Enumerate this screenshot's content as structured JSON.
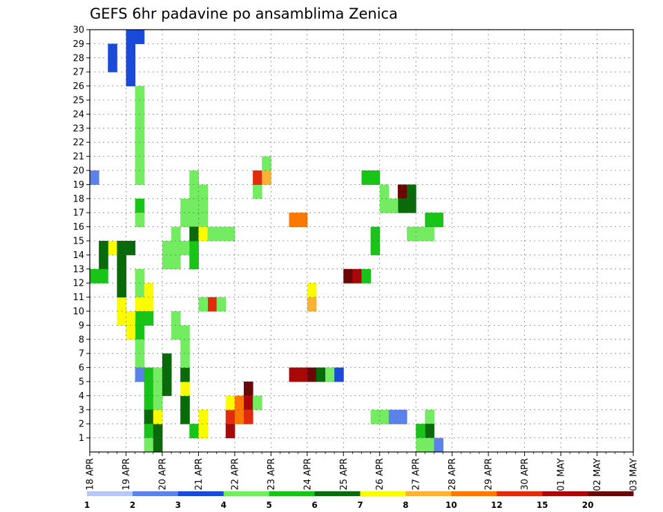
{
  "chart_data": {
    "type": "heatmap",
    "title": "GEFS 6hr padavine po ansamblima Zenica",
    "xlabel": "",
    "ylabel": "",
    "x_labels": [
      "18 APR",
      "19 APR",
      "20 APR",
      "21 APR",
      "22 APR",
      "23 APR",
      "24 APR",
      "25 APR",
      "26 APR",
      "27 APR",
      "28 APR",
      "29 APR",
      "30 APR",
      "01 MAY",
      "02 MAY",
      "03 MAY"
    ],
    "y_labels": [
      "1",
      "2",
      "3",
      "4",
      "5",
      "6",
      "7",
      "8",
      "9",
      "10",
      "11",
      "12",
      "13",
      "14",
      "15",
      "16",
      "17",
      "18",
      "19",
      "20",
      "21",
      "22",
      "23",
      "24",
      "25",
      "26",
      "27",
      "28",
      "29",
      "30"
    ],
    "y_range": [
      0,
      30
    ],
    "grid": "dotted",
    "colorbar": {
      "levels": [
        "1",
        "2",
        "3",
        "4",
        "5",
        "6",
        "7",
        "8",
        "10",
        "12",
        "15",
        "20"
      ],
      "colors": [
        "#b8c8f4",
        "#5a82e8",
        "#1a4ad8",
        "#74ec62",
        "#18c418",
        "#086a08",
        "#fcfc00",
        "#fcb234",
        "#fc7800",
        "#e02c0c",
        "#aa0808",
        "#6a0808"
      ]
    },
    "cells": [
      [
        5,
        29,
        3
      ],
      [
        5,
        25,
        3
      ],
      [
        5,
        24,
        3
      ],
      [
        5,
        23,
        3
      ],
      [
        5,
        22,
        3
      ],
      [
        5,
        21,
        3
      ],
      [
        5,
        20,
        3
      ],
      [
        5,
        19,
        3
      ],
      [
        5,
        17,
        4
      ],
      [
        5,
        16,
        3
      ],
      [
        5,
        12,
        3
      ],
      [
        5,
        11,
        3
      ],
      [
        5,
        10,
        6
      ],
      [
        5,
        9,
        4
      ],
      [
        5,
        8,
        4
      ],
      [
        5,
        7,
        3
      ],
      [
        5,
        6,
        3
      ],
      [
        5,
        5,
        1
      ],
      [
        5,
        29,
        2
      ],
      [
        4,
        29,
        2
      ],
      [
        4,
        28,
        2
      ],
      [
        4,
        27,
        2
      ],
      [
        4,
        26,
        2
      ],
      [
        0,
        19,
        1
      ],
      [
        2,
        28,
        2
      ],
      [
        2,
        27,
        2
      ],
      [
        2,
        14,
        6
      ],
      [
        1,
        14,
        5
      ],
      [
        1,
        13,
        5
      ],
      [
        1,
        12,
        4
      ],
      [
        0,
        12,
        4
      ],
      [
        4,
        8,
        6
      ],
      [
        4,
        9,
        6
      ],
      [
        3,
        9,
        6
      ],
      [
        3,
        10,
        6
      ],
      [
        3,
        11,
        5
      ],
      [
        3,
        12,
        5
      ],
      [
        3,
        13,
        5
      ],
      [
        3,
        14,
        5
      ],
      [
        4,
        14,
        5
      ],
      [
        6,
        10,
        6
      ],
      [
        6,
        11,
        6
      ],
      [
        6,
        9,
        4
      ],
      [
        6,
        5,
        4
      ],
      [
        6,
        4,
        4
      ],
      [
        6,
        3,
        4
      ],
      [
        6,
        2,
        5
      ],
      [
        6,
        1,
        4
      ],
      [
        6,
        0,
        3
      ],
      [
        7,
        0,
        5
      ],
      [
        7,
        1,
        5
      ],
      [
        7,
        2,
        6
      ],
      [
        7,
        3,
        3
      ],
      [
        7,
        4,
        3
      ],
      [
        7,
        5,
        3
      ],
      [
        8,
        4,
        5
      ],
      [
        8,
        6,
        5
      ],
      [
        8,
        5,
        5
      ],
      [
        10,
        2,
        5
      ],
      [
        10,
        3,
        5
      ],
      [
        10,
        4,
        6
      ],
      [
        10,
        5,
        5
      ],
      [
        10,
        6,
        3
      ],
      [
        10,
        7,
        3
      ],
      [
        10,
        8,
        3
      ],
      [
        9,
        8,
        3
      ],
      [
        9,
        9,
        3
      ],
      [
        8,
        13,
        3
      ],
      [
        9,
        13,
        3
      ],
      [
        8,
        14,
        3
      ],
      [
        9,
        14,
        3
      ],
      [
        10,
        14,
        3
      ],
      [
        9,
        15,
        3
      ],
      [
        10,
        16,
        3
      ],
      [
        10,
        17,
        3
      ],
      [
        11,
        16,
        3
      ],
      [
        11,
        17,
        3
      ],
      [
        12,
        16,
        3
      ],
      [
        12,
        17,
        3
      ],
      [
        12,
        18,
        3
      ],
      [
        11,
        18,
        3
      ],
      [
        11,
        19,
        3
      ],
      [
        11,
        13,
        4
      ],
      [
        11,
        14,
        4
      ],
      [
        11,
        15,
        5
      ],
      [
        12,
        15,
        6
      ],
      [
        13,
        15,
        3
      ],
      [
        14,
        15,
        3
      ],
      [
        15,
        15,
        3
      ],
      [
        13,
        10,
        9
      ],
      [
        12,
        10,
        3
      ],
      [
        14,
        10,
        3
      ],
      [
        11,
        1,
        4
      ],
      [
        12,
        1,
        6
      ],
      [
        12,
        2,
        6
      ],
      [
        22,
        5,
        10
      ],
      [
        23,
        5,
        10
      ],
      [
        24,
        5,
        11
      ],
      [
        25,
        5,
        5
      ],
      [
        26,
        5,
        3
      ],
      [
        27,
        5,
        2
      ],
      [
        28,
        12,
        11
      ],
      [
        29,
        12,
        10
      ],
      [
        30,
        12,
        4
      ],
      [
        31,
        2,
        3
      ],
      [
        32,
        2,
        3
      ],
      [
        33,
        2,
        1
      ],
      [
        34,
        2,
        1
      ],
      [
        33,
        18,
        12
      ],
      [
        34,
        18,
        11
      ],
      [
        35,
        18,
        5
      ],
      [
        34,
        17,
        5
      ],
      [
        35,
        17,
        5
      ],
      [
        33,
        17,
        3
      ],
      [
        32,
        17,
        3
      ],
      [
        32,
        18,
        3
      ],
      [
        37,
        2,
        3
      ],
      [
        37,
        1,
        5
      ],
      [
        36,
        1,
        4
      ],
      [
        36,
        0,
        3
      ],
      [
        37,
        0,
        3
      ],
      [
        38,
        0,
        1
      ],
      [
        37,
        15,
        3
      ],
      [
        37,
        16,
        4
      ],
      [
        38,
        16,
        4
      ],
      [
        36,
        15,
        3
      ],
      [
        35,
        15,
        3
      ],
      [
        15,
        1,
        10
      ],
      [
        15,
        2,
        9
      ],
      [
        15,
        3,
        6
      ],
      [
        16,
        2,
        8
      ],
      [
        16,
        3,
        8
      ],
      [
        17,
        3,
        3
      ],
      [
        17,
        4,
        11
      ],
      [
        17,
        3,
        10
      ],
      [
        17,
        2,
        9
      ],
      [
        18,
        3,
        3
      ],
      [
        18,
        18,
        3
      ],
      [
        18,
        19,
        9
      ],
      [
        19,
        19,
        7
      ],
      [
        19,
        20,
        3
      ],
      [
        24,
        11,
        6
      ],
      [
        24,
        10,
        7
      ],
      [
        22,
        16,
        8
      ],
      [
        23,
        16,
        8
      ],
      [
        30,
        19,
        4
      ],
      [
        31,
        19,
        4
      ],
      [
        31,
        15,
        4
      ],
      [
        31,
        14,
        4
      ]
    ]
  }
}
